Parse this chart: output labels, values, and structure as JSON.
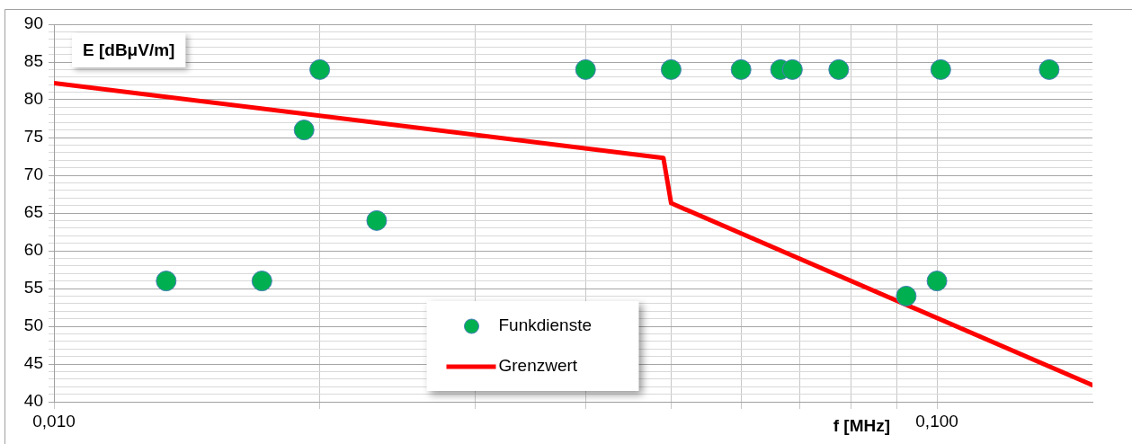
{
  "chart_data": {
    "type": "scatter",
    "xlabel": "f [MHz]",
    "ylabel": "E [dBμV/m]",
    "log": "x",
    "xlim": [
      0.01,
      0.15
    ],
    "xticks": [
      {
        "value": 0.01,
        "label": "0,010"
      },
      {
        "value": 0.02,
        "label": null
      },
      {
        "value": 0.03,
        "label": null
      },
      {
        "value": 0.04,
        "label": null
      },
      {
        "value": 0.05,
        "label": null
      },
      {
        "value": 0.06,
        "label": null
      },
      {
        "value": 0.07,
        "label": null
      },
      {
        "value": 0.08,
        "label": null
      },
      {
        "value": 0.09,
        "label": null
      },
      {
        "value": 0.1,
        "label": "0,100"
      }
    ],
    "ylim": [
      40,
      90
    ],
    "yticks": [
      40,
      45,
      50,
      55,
      60,
      65,
      70,
      75,
      80,
      85,
      90
    ],
    "grid": true,
    "legend": "bottom",
    "series": [
      {
        "name": "Funkdienste",
        "marker": "circle",
        "color": "#00b050",
        "x": [
          0.0134,
          0.0172,
          0.0192,
          0.02,
          0.0232,
          0.04,
          0.05,
          0.06,
          0.0665,
          0.0686,
          0.0774,
          0.0923,
          0.1,
          0.101,
          0.134
        ],
        "values": [
          56,
          56,
          76,
          84,
          64,
          84,
          84,
          84,
          84,
          84,
          84,
          54,
          56,
          84,
          84
        ]
      },
      {
        "name": "Grenzwert",
        "type": "line",
        "color": "#ff0000",
        "line_style": "solid",
        "x": [
          0.01,
          0.049,
          0.05,
          0.15
        ],
        "values": [
          82.2,
          72.3,
          66.3,
          42.2
        ]
      }
    ]
  }
}
